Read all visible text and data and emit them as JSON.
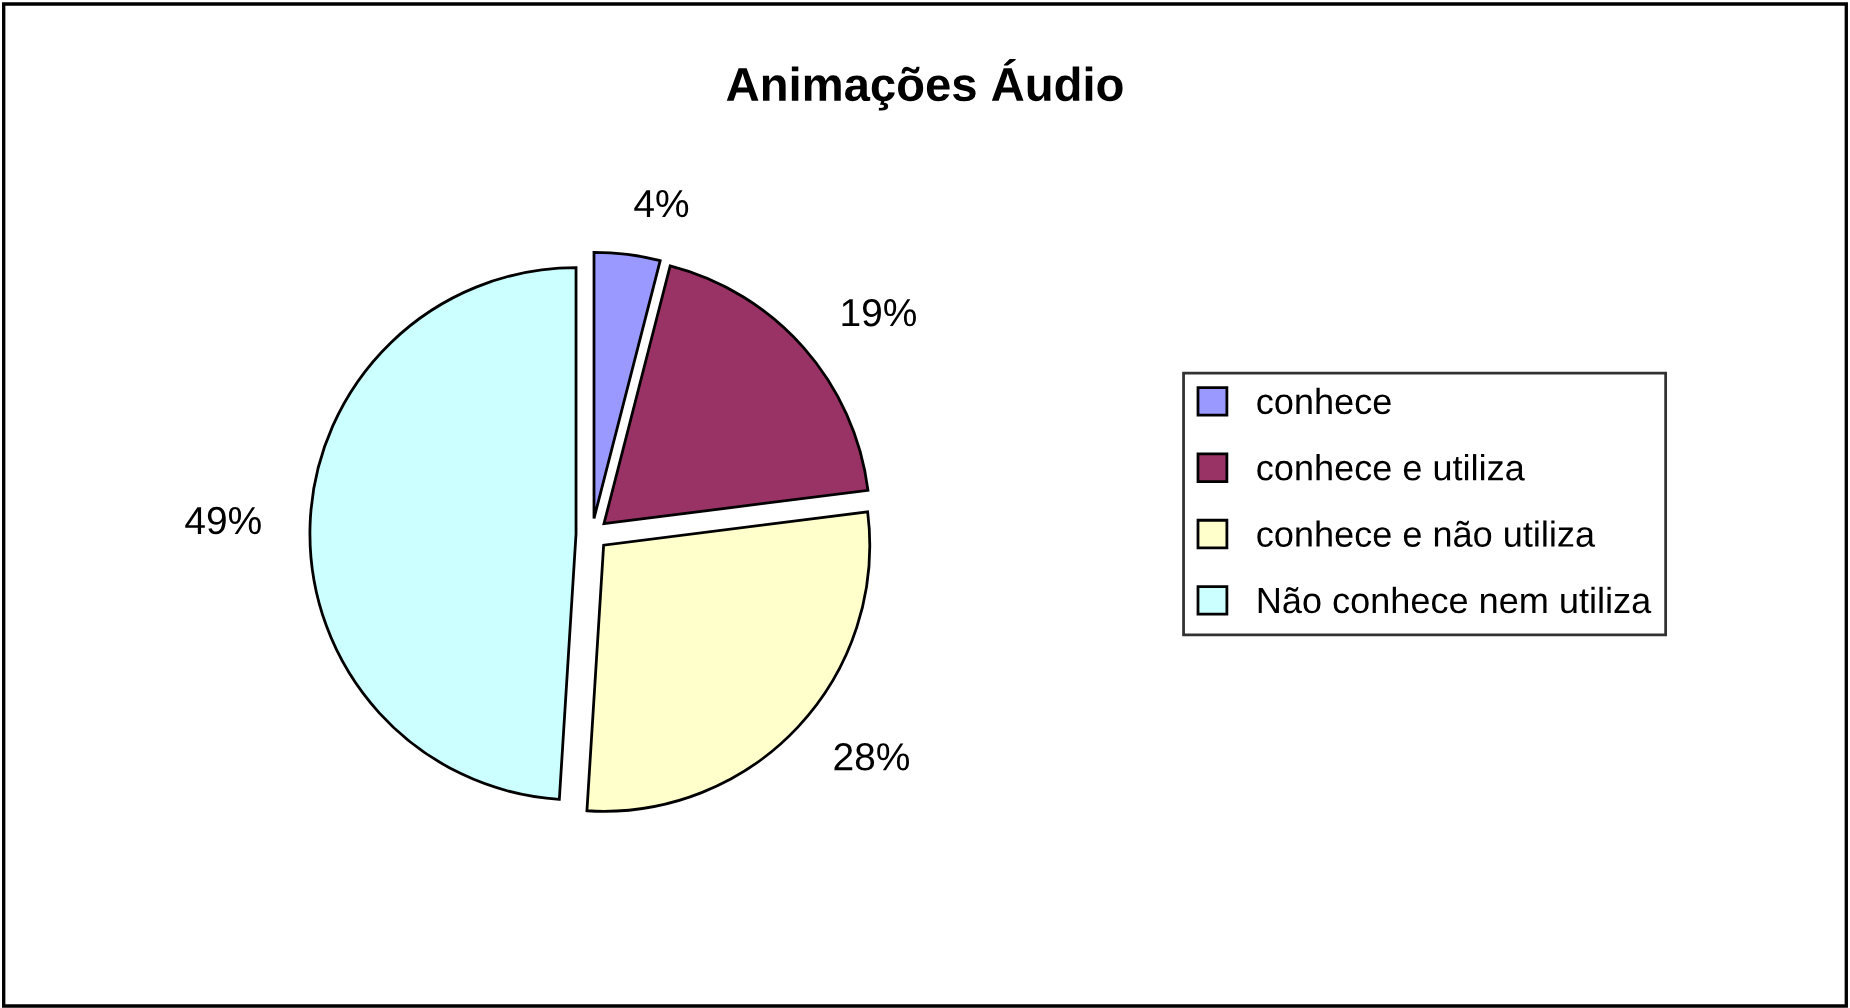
{
  "chart_data": {
    "type": "pie",
    "title": "Animações Áudio",
    "categories": [
      "conhece",
      "conhece e utiliza",
      "conhece e não utiliza",
      "Não conhece nem utiliza"
    ],
    "values": [
      4,
      19,
      28,
      49
    ],
    "colors": [
      "#9999ff",
      "#993366",
      "#ffffcc",
      "#ccffff"
    ],
    "value_labels": [
      "4%",
      "19%",
      "28%",
      "49%"
    ],
    "legend": "right"
  }
}
